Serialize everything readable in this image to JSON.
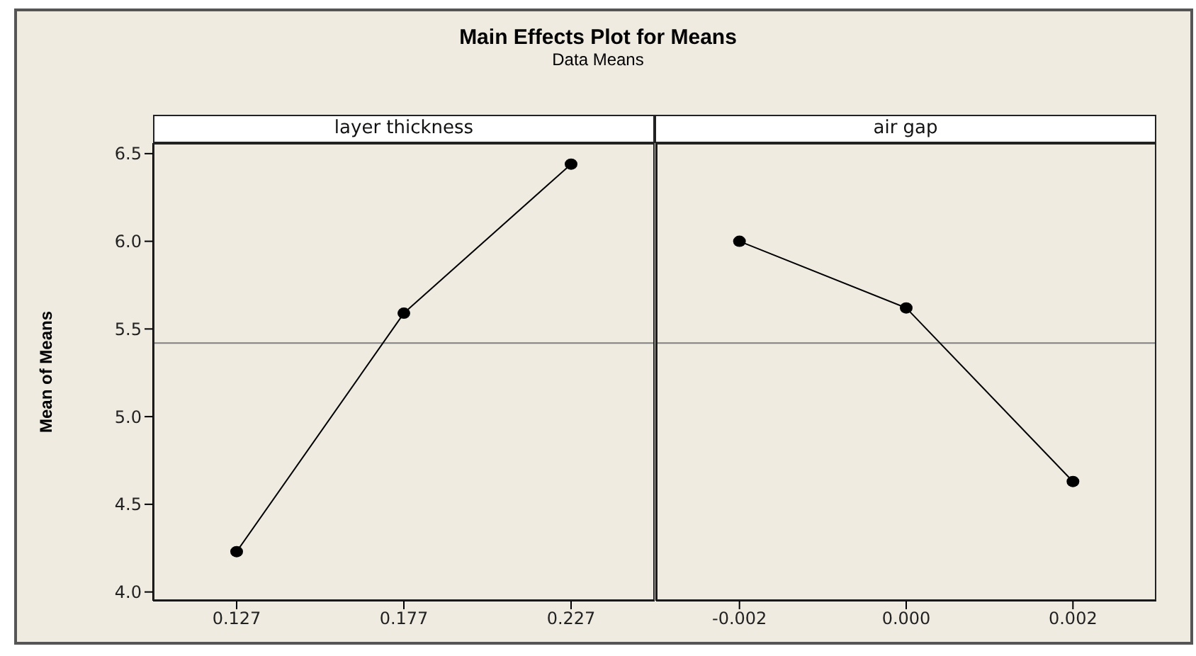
{
  "chart_data": [
    {
      "type": "line",
      "title": "Main Effects Plot for Means",
      "subtitle": "Data Means",
      "annotations": [
        "layer thickness"
      ],
      "ylabel": "Mean of Means",
      "x": [
        0.127,
        0.177,
        0.227
      ],
      "series": [
        {
          "color": "#000000",
          "values": [
            4.23,
            5.59,
            6.44
          ]
        }
      ],
      "xlim": [
        0.102,
        0.252
      ],
      "xticks": [
        0.127,
        0.177,
        0.227
      ],
      "ylim": [
        3.95,
        6.56
      ],
      "yticks": [
        {
          "value": 4,
          "label": "4.0"
        },
        4.5,
        {
          "value": 5,
          "label": "5.0"
        },
        5.5,
        {
          "value": 6,
          "label": "6.0"
        },
        6.5
      ],
      "ref_lines": [
        {
          "axis": "y",
          "value": 5.42,
          "color": "#808080"
        }
      ],
      "marker": "circle",
      "grid": false,
      "legend": false
    },
    {
      "type": "line",
      "annotations": [
        "air gap"
      ],
      "x": [
        -0.002,
        0,
        0.002
      ],
      "series": [
        {
          "color": "#000000",
          "values": [
            6.0,
            5.62,
            4.63
          ]
        }
      ],
      "xlim": [
        -0.003,
        0.003
      ],
      "xticks": [
        -0.002,
        {
          "value": 0,
          "label": "0.000"
        },
        0.002
      ],
      "ylim": [
        3.95,
        6.56
      ],
      "yticks": [
        4,
        4.5,
        5,
        5.5,
        6,
        6.5
      ],
      "tick_labels": "x",
      "ref_lines": [
        {
          "axis": "y",
          "value": 5.42,
          "color": "#808080"
        }
      ],
      "marker": "circle",
      "grid": false,
      "legend": false
    }
  ]
}
